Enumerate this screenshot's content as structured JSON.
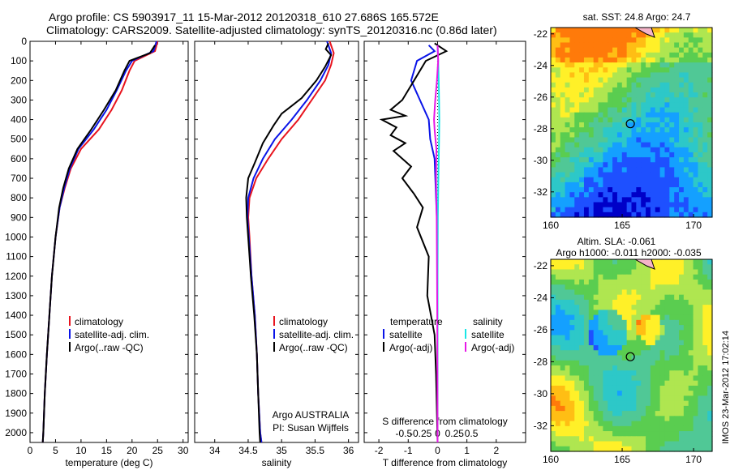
{
  "header": {
    "line1": "Argo profile: CS 5903917_11 15-Mar-2012 20120318_610 27.686S 165.572E",
    "line2": "Climatology: CARS2009. Satellite-adjusted climatology: synTS_20120316.nc (0.86d later)"
  },
  "colors": {
    "climatology": "#e8141e",
    "satellite": "#0a14e8",
    "argo": "#000000",
    "satellite_s": "#19e6e6",
    "argo_s": "#e619e6"
  },
  "chart_data": [
    {
      "type": "line",
      "name": "temperature-profile",
      "xlabel": "temperature (deg C)",
      "ylabel": "",
      "xlim": [
        0,
        31
      ],
      "ylim": [
        2050,
        0
      ],
      "x_ticks": [
        0,
        5,
        10,
        15,
        20,
        25,
        30
      ],
      "y_ticks": [
        0,
        100,
        200,
        300,
        400,
        500,
        600,
        700,
        800,
        900,
        1000,
        1100,
        1200,
        1300,
        1400,
        1500,
        1600,
        1700,
        1800,
        1900,
        2000
      ],
      "legend": {
        "placement": "lower-middle",
        "entries": [
          "climatology",
          "satellite-adj. clim.",
          "Argo(..raw -QC)"
        ]
      },
      "series": [
        {
          "name": "climatology",
          "color_key": "climatology",
          "points": [
            [
              25,
              0
            ],
            [
              24.5,
              50
            ],
            [
              20.5,
              100
            ],
            [
              19.5,
              150
            ],
            [
              18,
              250
            ],
            [
              16,
              350
            ],
            [
              13.5,
              450
            ],
            [
              10,
              550
            ],
            [
              8,
              650
            ],
            [
              6.8,
              750
            ],
            [
              5.8,
              850
            ],
            [
              5,
              1000
            ],
            [
              4.3,
              1200
            ],
            [
              3.8,
              1400
            ],
            [
              3.3,
              1600
            ],
            [
              2.9,
              1800
            ],
            [
              2.6,
              2000
            ],
            [
              2.5,
              2050
            ]
          ]
        },
        {
          "name": "satellite-adj. clim.",
          "color_key": "satellite",
          "points": [
            [
              24.8,
              0
            ],
            [
              24.2,
              50
            ],
            [
              20,
              100
            ],
            [
              18.8,
              150
            ],
            [
              17,
              250
            ],
            [
              15,
              350
            ],
            [
              12.5,
              450
            ],
            [
              9.5,
              550
            ],
            [
              7.8,
              650
            ],
            [
              6.7,
              750
            ],
            [
              5.8,
              850
            ],
            [
              5,
              1000
            ],
            [
              4.3,
              1200
            ],
            [
              3.8,
              1400
            ],
            [
              3.3,
              1600
            ],
            [
              2.9,
              1800
            ],
            [
              2.6,
              2000
            ],
            [
              2.5,
              2050
            ]
          ]
        },
        {
          "name": "Argo(..raw -QC)",
          "color_key": "argo",
          "points": [
            [
              24.5,
              20
            ],
            [
              23.5,
              60
            ],
            [
              19.5,
              100
            ],
            [
              18.5,
              150
            ],
            [
              16.8,
              250
            ],
            [
              14.5,
              350
            ],
            [
              12,
              450
            ],
            [
              9.3,
              550
            ],
            [
              7.6,
              650
            ],
            [
              6.5,
              750
            ],
            [
              5.7,
              850
            ],
            [
              5,
              1000
            ],
            [
              4.3,
              1200
            ],
            [
              3.8,
              1400
            ],
            [
              3.3,
              1600
            ],
            [
              2.9,
              1800
            ],
            [
              2.6,
              2000
            ],
            [
              2.5,
              2050
            ]
          ]
        }
      ]
    },
    {
      "type": "line",
      "name": "salinity-profile",
      "xlabel": "salinity",
      "ylabel": "",
      "xlim": [
        33.7,
        36.15
      ],
      "ylim": [
        2050,
        0
      ],
      "x_ticks": [
        34,
        34.5,
        35,
        35.5,
        36
      ],
      "x_tick_labels": [
        "34",
        "34.5",
        "35",
        "35.5",
        "36"
      ],
      "legend": {
        "placement": "lower-right",
        "entries": [
          "climatology",
          "satellite-adj. clim.",
          "Argo(..raw -QC)"
        ]
      },
      "annotation": [
        "Argo AUSTRALIA",
        "PI: Susan Wijffels"
      ],
      "series": [
        {
          "name": "climatology",
          "color_key": "climatology",
          "points": [
            [
              35.72,
              0
            ],
            [
              35.78,
              60
            ],
            [
              35.74,
              120
            ],
            [
              35.65,
              200
            ],
            [
              35.45,
              300
            ],
            [
              35.25,
              400
            ],
            [
              35.0,
              500
            ],
            [
              34.8,
              600
            ],
            [
              34.62,
              700
            ],
            [
              34.52,
              800
            ],
            [
              34.5,
              900
            ],
            [
              34.52,
              1000
            ],
            [
              34.55,
              1200
            ],
            [
              34.6,
              1400
            ],
            [
              34.63,
              1600
            ],
            [
              34.65,
              1800
            ],
            [
              34.68,
              2000
            ],
            [
              34.7,
              2050
            ]
          ]
        },
        {
          "name": "satellite-adj. clim.",
          "color_key": "satellite",
          "points": [
            [
              35.68,
              0
            ],
            [
              35.74,
              60
            ],
            [
              35.7,
              120
            ],
            [
              35.58,
              200
            ],
            [
              35.38,
              300
            ],
            [
              35.15,
              400
            ],
            [
              34.9,
              500
            ],
            [
              34.72,
              600
            ],
            [
              34.58,
              700
            ],
            [
              34.5,
              800
            ],
            [
              34.49,
              900
            ],
            [
              34.51,
              1000
            ],
            [
              34.55,
              1200
            ],
            [
              34.6,
              1400
            ],
            [
              34.63,
              1600
            ],
            [
              34.65,
              1800
            ],
            [
              34.68,
              2000
            ],
            [
              34.7,
              2050
            ]
          ]
        },
        {
          "name": "Argo(..raw -QC)",
          "color_key": "argo",
          "points": [
            [
              35.7,
              10
            ],
            [
              35.66,
              40
            ],
            [
              35.74,
              70
            ],
            [
              35.65,
              130
            ],
            [
              35.52,
              200
            ],
            [
              35.3,
              290
            ],
            [
              35.15,
              330
            ],
            [
              35.0,
              370
            ],
            [
              34.88,
              430
            ],
            [
              34.72,
              520
            ],
            [
              34.6,
              620
            ],
            [
              34.5,
              700
            ],
            [
              34.47,
              800
            ],
            [
              34.48,
              900
            ],
            [
              34.5,
              1000
            ],
            [
              34.54,
              1200
            ],
            [
              34.59,
              1400
            ],
            [
              34.63,
              1600
            ],
            [
              34.65,
              1800
            ],
            [
              34.67,
              2000
            ],
            [
              34.68,
              2050
            ]
          ]
        }
      ]
    },
    {
      "type": "line",
      "name": "difference-profile",
      "xlabel": "T difference from climatology",
      "xlabel2": "S difference from climatology",
      "xlim": [
        -2.5,
        3
      ],
      "ylim": [
        2050,
        0
      ],
      "x_ticks": [
        -2,
        -1,
        0,
        1,
        2
      ],
      "x_tick_labels": [
        "-2",
        "-1",
        "0",
        "1",
        "2"
      ],
      "s_ticks": [
        -0.5,
        -0.25,
        0,
        0.25,
        0.5
      ],
      "s_tick_labels": [
        "-0.5",
        "-0.25",
        "0",
        "0.25",
        "0.5"
      ],
      "legend": {
        "placement": "lower-middle",
        "left_title": "temperature",
        "right_title": "salinity",
        "left_entries": [
          "satellite",
          "Argo(-adj)"
        ],
        "right_entries": [
          "satellite",
          "Argo(-adj)"
        ]
      },
      "series": [
        {
          "name": "temperature satellite",
          "color_key": "satellite",
          "points": [
            [
              -0.3,
              20
            ],
            [
              -0.1,
              50
            ],
            [
              -0.7,
              100
            ],
            [
              -0.9,
              200
            ],
            [
              -0.6,
              300
            ],
            [
              -0.3,
              400
            ],
            [
              -0.25,
              500
            ],
            [
              -0.1,
              600
            ],
            [
              -0.05,
              800
            ],
            [
              0,
              1000
            ],
            [
              0,
              1500
            ],
            [
              0,
              2050
            ]
          ]
        },
        {
          "name": "temperature Argo(-adj)",
          "color_key": "argo",
          "points": [
            [
              -0.1,
              10
            ],
            [
              0.3,
              50
            ],
            [
              -0.4,
              100
            ],
            [
              -0.8,
              200
            ],
            [
              -1.2,
              300
            ],
            [
              -1.6,
              350
            ],
            [
              -1.1,
              380
            ],
            [
              -1.9,
              400
            ],
            [
              -1.4,
              440
            ],
            [
              -1.6,
              480
            ],
            [
              -1.1,
              520
            ],
            [
              -1.5,
              560
            ],
            [
              -0.9,
              640
            ],
            [
              -1.2,
              700
            ],
            [
              -0.8,
              780
            ],
            [
              -0.5,
              850
            ],
            [
              -0.7,
              950
            ],
            [
              -0.3,
              1100
            ],
            [
              -0.35,
              1300
            ],
            [
              -0.1,
              1500
            ],
            [
              -0.05,
              1700
            ],
            [
              0,
              2050
            ]
          ]
        },
        {
          "name": "salinity satellite",
          "color_key": "satellite_s",
          "points": [
            [
              0.0,
              20
            ],
            [
              0.02,
              100
            ],
            [
              0.04,
              200
            ],
            [
              0.05,
              300
            ],
            [
              0.06,
              400
            ],
            [
              0.05,
              500
            ],
            [
              0.03,
              700
            ],
            [
              0.01,
              900
            ],
            [
              0,
              1200
            ],
            [
              0,
              2050
            ]
          ]
        },
        {
          "name": "salinity Argo(-adj)",
          "color_key": "argo_s",
          "points": [
            [
              0.0,
              20
            ],
            [
              0.02,
              100
            ],
            [
              -0.02,
              200
            ],
            [
              -0.08,
              300
            ],
            [
              -0.12,
              400
            ],
            [
              -0.1,
              450
            ],
            [
              -0.04,
              550
            ],
            [
              -0.05,
              700
            ],
            [
              -0.03,
              900
            ],
            [
              -0.02,
              1100
            ],
            [
              -0.01,
              1400
            ],
            [
              0,
              2050
            ]
          ]
        }
      ]
    },
    {
      "type": "heatmap",
      "name": "sst-map",
      "title": "sat. SST: 24.8 Argo: 24.7",
      "xlim": [
        160,
        171.3
      ],
      "ylim": [
        -33.6,
        -21.6
      ],
      "x_ticks": [
        160,
        165,
        170
      ],
      "y_ticks": [
        -22,
        -24,
        -26,
        -28,
        -30,
        -32
      ],
      "marker_lon": 165.572,
      "marker_lat": -27.686
    },
    {
      "type": "heatmap",
      "name": "sla-map",
      "title_line1": "Altim. SLA: -0.061",
      "title_line2": "Argo h1000: -0.011 h2000: -0.035",
      "xlim": [
        160,
        171.3
      ],
      "ylim": [
        -33.6,
        -21.6
      ],
      "x_ticks": [
        160,
        165,
        170
      ],
      "y_ticks": [
        -22,
        -24,
        -26,
        -28,
        -30,
        -32
      ],
      "marker_lon": 165.572,
      "marker_lat": -27.686
    }
  ],
  "footer": {
    "stamp": "IMOS 23-Mar-2012 17:02:14"
  }
}
